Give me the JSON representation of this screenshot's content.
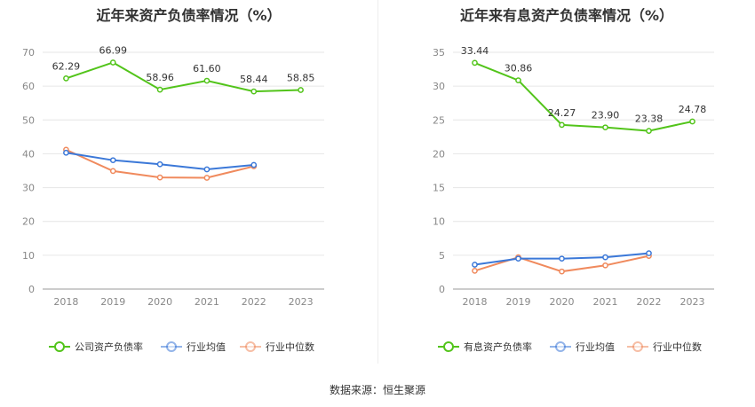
{
  "source": "数据来源：恒生聚源",
  "chart_data": [
    {
      "type": "line",
      "title": "近年来资产负债率情况（%）",
      "categories": [
        "2018",
        "2019",
        "2020",
        "2021",
        "2022",
        "2023"
      ],
      "ylim": [
        0,
        70
      ],
      "yticks": [
        0,
        10,
        20,
        30,
        40,
        50,
        60,
        70
      ],
      "grid": true,
      "legend_position": "bottom",
      "series": [
        {
          "name": "公司资产负债率",
          "color": "#52c41a",
          "values": [
            62.29,
            66.99,
            58.96,
            61.6,
            58.44,
            58.85
          ],
          "labels": [
            "62.29",
            "66.99",
            "58.96",
            "61.60",
            "58.44",
            "58.85"
          ]
        },
        {
          "name": "行业均值",
          "color": "#3b78d8",
          "values": [
            40.3,
            38.1,
            36.9,
            35.4,
            36.7,
            null
          ]
        },
        {
          "name": "行业中位数",
          "color": "#f08a5d",
          "values": [
            41.2,
            34.9,
            33.0,
            32.9,
            36.3,
            null
          ]
        }
      ]
    },
    {
      "type": "line",
      "title": "近年来有息资产负债率情况（%）",
      "categories": [
        "2018",
        "2019",
        "2020",
        "2021",
        "2022",
        "2023"
      ],
      "ylim": [
        0,
        35
      ],
      "yticks": [
        0,
        5,
        10,
        15,
        20,
        25,
        30,
        35
      ],
      "grid": true,
      "legend_position": "bottom",
      "series": [
        {
          "name": "有息资产负债率",
          "color": "#52c41a",
          "values": [
            33.44,
            30.86,
            24.27,
            23.9,
            23.38,
            24.78
          ],
          "labels": [
            "33.44",
            "30.86",
            "24.27",
            "23.90",
            "23.38",
            "24.78"
          ]
        },
        {
          "name": "行业均值",
          "color": "#3b78d8",
          "values": [
            3.6,
            4.5,
            4.5,
            4.7,
            5.3,
            null
          ]
        },
        {
          "name": "行业中位数",
          "color": "#f08a5d",
          "values": [
            2.7,
            4.7,
            2.6,
            3.5,
            4.9,
            null
          ]
        }
      ]
    }
  ]
}
